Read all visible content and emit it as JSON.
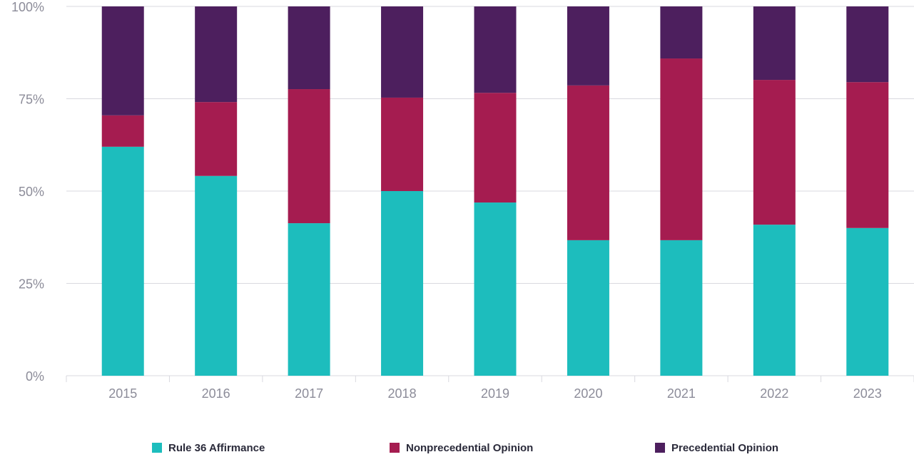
{
  "chart_data": {
    "type": "stacked_bar",
    "categories": [
      "2015",
      "2016",
      "2017",
      "2018",
      "2019",
      "2020",
      "2021",
      "2022",
      "2023"
    ],
    "series": [
      {
        "name": "Rule 36 Affirmance",
        "color": "#1dbdbd",
        "values": [
          62.0,
          54.1,
          41.3,
          50.0,
          46.9,
          36.7,
          36.7,
          40.9,
          40.0
        ]
      },
      {
        "name": "Nonprecedential Opinion",
        "color": "#a51c50",
        "values": [
          8.5,
          20.0,
          36.3,
          25.3,
          29.7,
          41.9,
          49.2,
          39.2,
          39.5
        ]
      },
      {
        "name": "Precedential Opinion",
        "color": "#4d1f5e",
        "values": [
          29.5,
          25.9,
          22.4,
          24.7,
          23.4,
          21.4,
          14.1,
          19.9,
          20.5
        ]
      }
    ],
    "ylim": [
      0,
      100
    ],
    "yticks": [
      {
        "value": 0,
        "label": "0%"
      },
      {
        "value": 25,
        "label": "25%"
      },
      {
        "value": 50,
        "label": "50%"
      },
      {
        "value": 75,
        "label": "75%"
      },
      {
        "value": 100,
        "label": "100%"
      }
    ],
    "grid": true,
    "legend": "bottom"
  }
}
